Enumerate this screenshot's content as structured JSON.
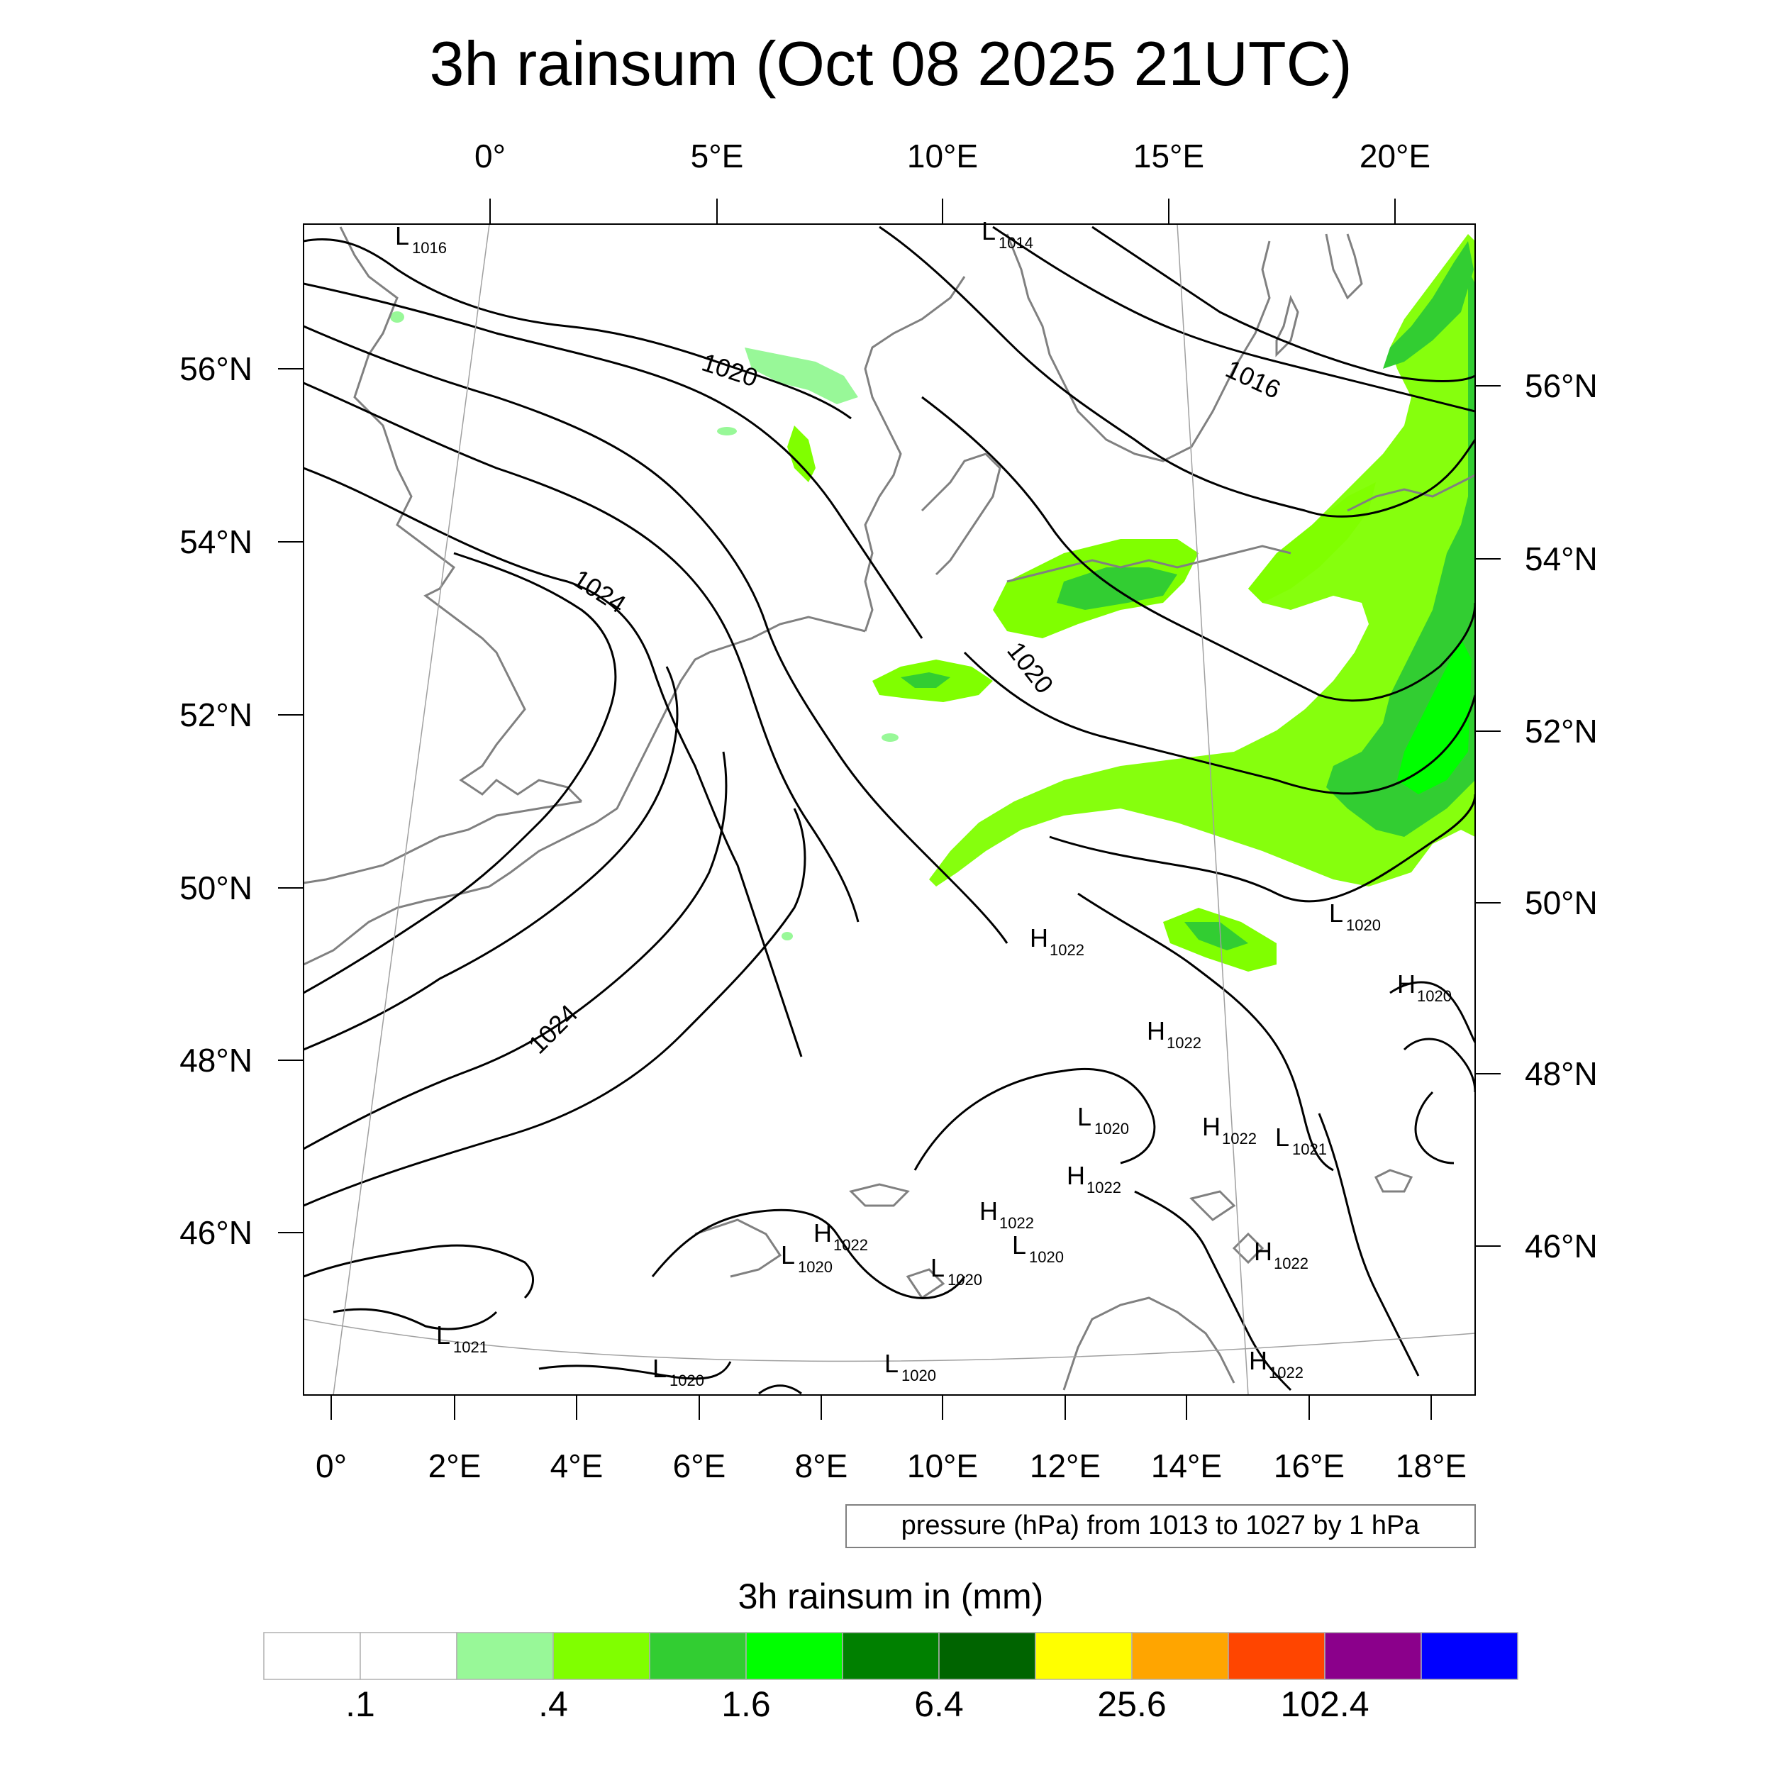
{
  "title": "3h rainsum (Oct 08 2025 21UTC)",
  "top_lon_labels": [
    "0°",
    "5°E",
    "10°E",
    "15°E",
    "20°E"
  ],
  "bottom_lon_labels": [
    "0°",
    "2°E",
    "4°E",
    "6°E",
    "8°E",
    "10°E",
    "12°E",
    "14°E",
    "16°E",
    "18°E"
  ],
  "left_lat_labels": [
    "56°N",
    "54°N",
    "52°N",
    "50°N",
    "48°N",
    "46°N"
  ],
  "right_lat_labels": [
    "56°N",
    "54°N",
    "52°N",
    "50°N",
    "48°N",
    "46°N"
  ],
  "isobar_labels": [
    "1020",
    "1016",
    "1024",
    "1020",
    "1024"
  ],
  "pressure_centers": [
    {
      "type": "L",
      "value": "1016"
    },
    {
      "type": "L",
      "value": "1014"
    },
    {
      "type": "L",
      "value": "1020"
    },
    {
      "type": "H",
      "value": "1022"
    },
    {
      "type": "H",
      "value": "1020"
    },
    {
      "type": "H",
      "value": "1022"
    },
    {
      "type": "L",
      "value": "1020"
    },
    {
      "type": "H",
      "value": "1022"
    },
    {
      "type": "L",
      "value": "1021"
    },
    {
      "type": "H",
      "value": "1022"
    },
    {
      "type": "H",
      "value": "1022"
    },
    {
      "type": "H",
      "value": "1022"
    },
    {
      "type": "L",
      "value": "1020"
    },
    {
      "type": "L",
      "value": "1020"
    },
    {
      "type": "L",
      "value": "1020"
    },
    {
      "type": "H",
      "value": "1022"
    },
    {
      "type": "L",
      "value": "1021"
    },
    {
      "type": "L",
      "value": "1020"
    },
    {
      "type": "L",
      "value": "1020"
    },
    {
      "type": "H",
      "value": "1022"
    }
  ],
  "contour_note": "pressure (hPa) from 1013 to 1027 by 1 hPa",
  "colorbar": {
    "title": "3h rainsum in (mm)",
    "colors": [
      "#ffffff",
      "#ffffff",
      "#98f898",
      "#80ff00",
      "#32cd32",
      "#00ff00",
      "#008000",
      "#006400",
      "#ffff00",
      "#ffa500",
      "#ff4500",
      "#8b008b",
      "#0000ff"
    ],
    "labels": [
      ".1",
      ".4",
      "1.6",
      "6.4",
      "25.6",
      "102.4"
    ]
  },
  "colors": {
    "isobar": "#000000",
    "coast": "#808080"
  }
}
